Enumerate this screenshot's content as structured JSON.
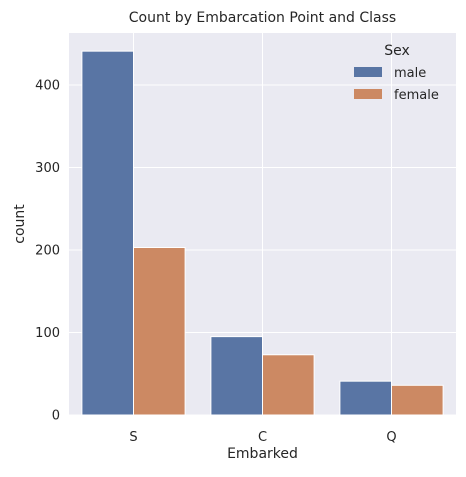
{
  "chart_data": {
    "type": "bar",
    "title": "Count by Embarcation Point and Class",
    "xlabel": "Embarked",
    "ylabel": "count",
    "categories": [
      "S",
      "C",
      "Q"
    ],
    "series": [
      {
        "name": "male",
        "values": [
          441,
          95,
          41
        ],
        "color": "#5975a4"
      },
      {
        "name": "female",
        "values": [
          203,
          73,
          36
        ],
        "color": "#cc8963"
      }
    ],
    "ylim": [
      0,
      463
    ],
    "yticks": [
      0,
      100,
      200,
      300,
      400
    ],
    "grid": true,
    "background_color": "#eaeaf2",
    "legend": {
      "title": "Sex",
      "placement": "top-right"
    }
  }
}
